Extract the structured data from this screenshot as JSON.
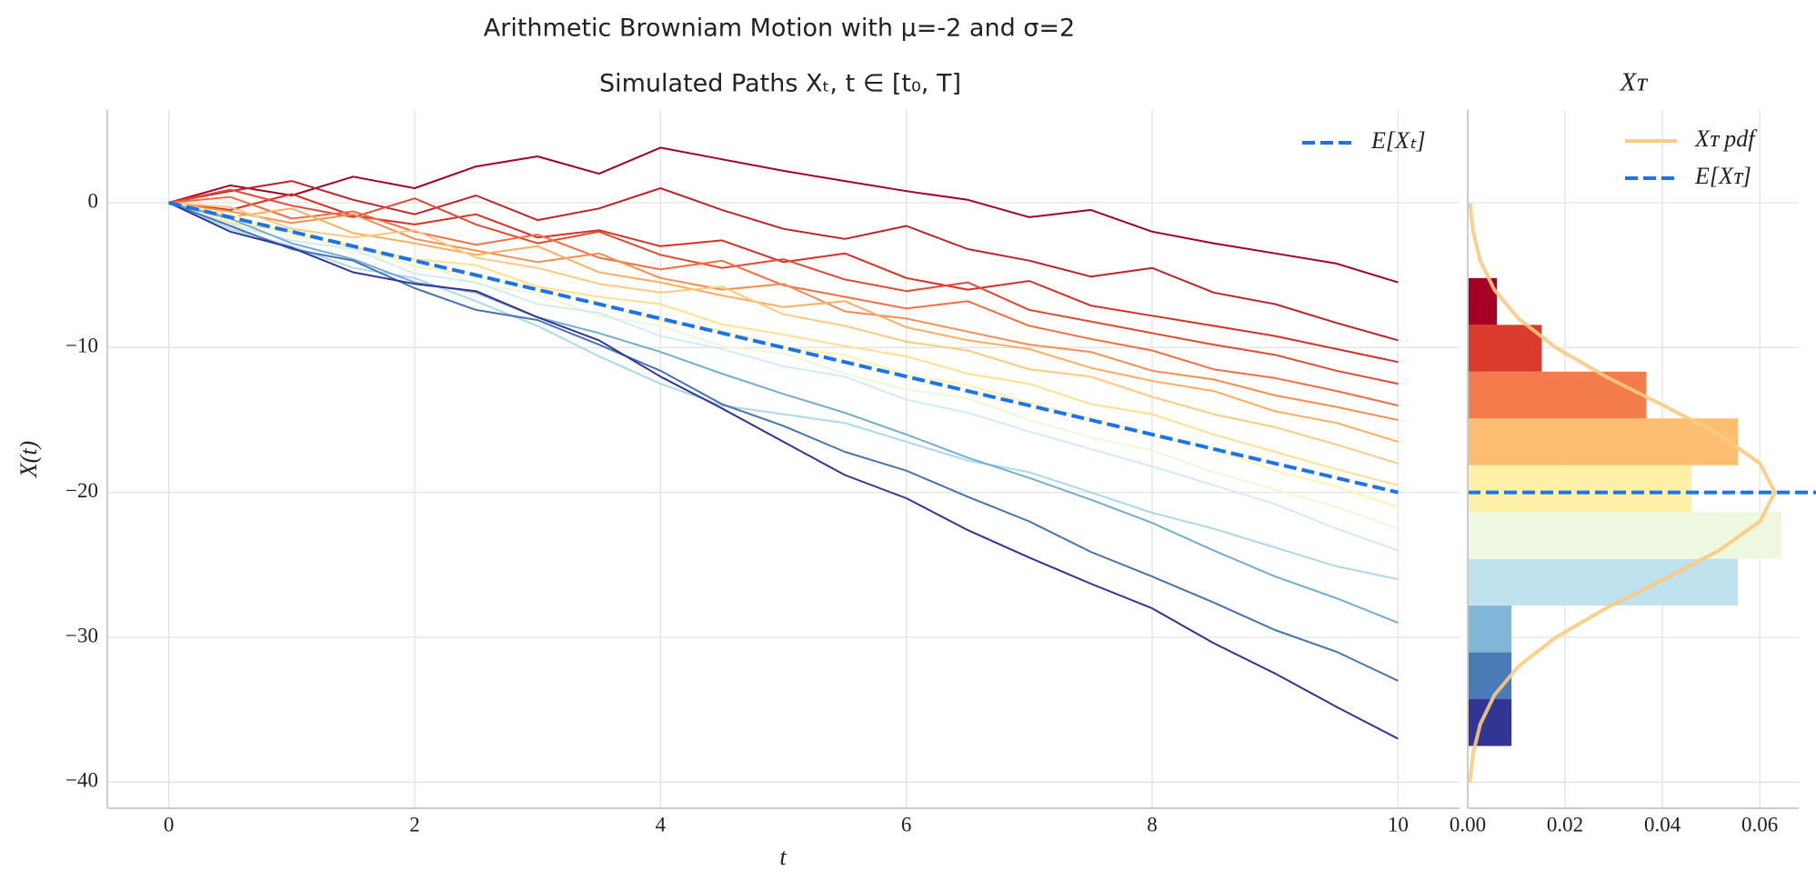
{
  "title": "Arithmetic Browniam Motion with μ=-2 and σ=2",
  "chart_data": [
    {
      "type": "line",
      "title": "Simulated Paths Xₜ, t ∈ [t₀, T]",
      "xlabel": "t",
      "ylabel": "X(t)",
      "x": [
        0,
        0.5,
        1,
        1.5,
        2,
        2.5,
        3,
        3.5,
        4,
        4.5,
        5,
        5.5,
        6,
        6.5,
        7,
        7.5,
        8,
        8.5,
        9,
        9.5,
        10
      ],
      "series": [
        {
          "color": "#a50026",
          "values": [
            0,
            1.2,
            0.5,
            1.8,
            1.0,
            2.5,
            3.2,
            2.0,
            3.8,
            3.0,
            2.2,
            1.5,
            0.8,
            0.2,
            -1.0,
            -0.5,
            -2.0,
            -2.8,
            -3.5,
            -4.2,
            -5.5
          ]
        },
        {
          "color": "#c1232b",
          "values": [
            0,
            0.8,
            1.5,
            0.2,
            -0.8,
            0.5,
            -1.2,
            -0.4,
            1.0,
            -0.5,
            -1.8,
            -2.5,
            -1.6,
            -3.2,
            -4.0,
            -5.1,
            -4.5,
            -6.2,
            -7.0,
            -8.3,
            -9.5
          ]
        },
        {
          "color": "#d73027",
          "values": [
            0,
            -0.5,
            0.6,
            -0.9,
            -1.5,
            -0.8,
            -2.4,
            -1.9,
            -3.0,
            -2.6,
            -4.1,
            -3.5,
            -5.2,
            -6.0,
            -5.4,
            -7.1,
            -7.8,
            -8.5,
            -9.2,
            -10.1,
            -11.0
          ]
        },
        {
          "color": "#e34a33",
          "values": [
            0,
            0.9,
            -0.2,
            -1.0,
            0.3,
            -1.5,
            -2.8,
            -2.0,
            -3.6,
            -4.5,
            -3.9,
            -5.3,
            -6.1,
            -5.5,
            -7.4,
            -8.2,
            -9.0,
            -9.8,
            -10.5,
            -11.6,
            -12.5
          ]
        },
        {
          "color": "#f46d43",
          "values": [
            0,
            0.4,
            -1.1,
            -0.6,
            -2.0,
            -2.9,
            -2.2,
            -3.8,
            -4.6,
            -4.0,
            -5.7,
            -6.5,
            -7.3,
            -6.8,
            -8.5,
            -9.4,
            -10.2,
            -11.5,
            -12.1,
            -13.0,
            -14.0
          ]
        },
        {
          "color": "#f88d52",
          "values": [
            0,
            -0.6,
            -1.4,
            -0.8,
            -2.5,
            -3.3,
            -4.1,
            -3.5,
            -5.2,
            -6.0,
            -5.6,
            -7.5,
            -8.0,
            -8.9,
            -9.8,
            -10.3,
            -11.6,
            -12.2,
            -13.3,
            -14.1,
            -15.0
          ]
        },
        {
          "color": "#fdae61",
          "values": [
            0,
            -1.0,
            -0.4,
            -2.1,
            -2.8,
            -3.6,
            -3.0,
            -4.8,
            -5.5,
            -6.4,
            -7.2,
            -6.8,
            -8.6,
            -9.5,
            -10.1,
            -11.4,
            -12.3,
            -13.0,
            -14.4,
            -15.2,
            -16.5
          ]
        },
        {
          "color": "#fec980",
          "values": [
            0,
            -0.3,
            -1.8,
            -2.4,
            -1.9,
            -3.8,
            -4.5,
            -5.6,
            -6.2,
            -5.8,
            -7.7,
            -8.5,
            -9.6,
            -10.2,
            -11.5,
            -12.0,
            -13.4,
            -14.6,
            -15.5,
            -16.7,
            -18.0
          ]
        },
        {
          "color": "#fee090",
          "values": [
            0,
            -1.4,
            -2.0,
            -3.1,
            -3.9,
            -4.3,
            -5.8,
            -6.5,
            -7.0,
            -8.4,
            -9.1,
            -9.9,
            -10.6,
            -11.8,
            -12.5,
            -13.9,
            -14.6,
            -16.0,
            -17.2,
            -18.4,
            -19.5
          ]
        },
        {
          "color": "#fff3b0",
          "values": [
            0,
            -0.8,
            -2.3,
            -2.9,
            -4.4,
            -5.0,
            -6.1,
            -6.9,
            -8.2,
            -8.8,
            -10.0,
            -10.5,
            -11.9,
            -12.6,
            -13.8,
            -14.9,
            -16.1,
            -17.0,
            -18.5,
            -19.6,
            -21.0
          ]
        },
        {
          "color": "#eef7d8",
          "values": [
            0,
            -1.2,
            -1.9,
            -3.5,
            -4.0,
            -5.6,
            -6.3,
            -7.8,
            -8.5,
            -9.9,
            -10.4,
            -11.8,
            -12.9,
            -13.5,
            -15.0,
            -16.2,
            -17.1,
            -18.6,
            -19.8,
            -21.0,
            -22.5
          ]
        },
        {
          "color": "#d1ecf2",
          "values": [
            0,
            -1.5,
            -2.6,
            -3.2,
            -4.9,
            -5.5,
            -7.0,
            -7.6,
            -9.2,
            -10.1,
            -11.3,
            -12.0,
            -13.6,
            -14.5,
            -15.8,
            -17.0,
            -18.2,
            -19.5,
            -20.8,
            -22.5,
            -24.0
          ]
        },
        {
          "color": "#abd9e9",
          "values": [
            0,
            -1.8,
            -3.0,
            -4.5,
            -5.2,
            -6.8,
            -8.5,
            -10.6,
            -12.5,
            -14.0,
            -14.6,
            -15.2,
            -16.5,
            -17.8,
            -18.6,
            -20.0,
            -21.4,
            -22.5,
            -23.8,
            -25.1,
            -26.0
          ]
        },
        {
          "color": "#74add1",
          "values": [
            0,
            -1.1,
            -2.8,
            -3.9,
            -5.5,
            -6.2,
            -7.9,
            -9.0,
            -10.3,
            -11.8,
            -13.2,
            -14.5,
            -16.0,
            -17.6,
            -19.0,
            -20.5,
            -22.1,
            -24.0,
            -25.8,
            -27.3,
            -29.0
          ]
        },
        {
          "color": "#4575b4",
          "values": [
            0,
            -1.6,
            -3.2,
            -4.0,
            -5.9,
            -7.4,
            -8.1,
            -9.8,
            -11.6,
            -13.9,
            -15.4,
            -17.2,
            -18.5,
            -20.3,
            -22.0,
            -24.1,
            -25.8,
            -27.6,
            -29.5,
            -31.0,
            -33.0
          ]
        },
        {
          "color": "#313695",
          "values": [
            0,
            -2.0,
            -3.1,
            -4.8,
            -5.6,
            -6.1,
            -7.9,
            -9.5,
            -12.0,
            -14.2,
            -16.5,
            -18.8,
            -20.4,
            -22.6,
            -24.5,
            -26.3,
            -28.0,
            -30.4,
            -32.5,
            -34.8,
            -37.0
          ]
        },
        {
          "name": "E[Xₜ]",
          "color": "#1a73e8",
          "dashed": true,
          "x": [
            0,
            10
          ],
          "values": [
            0,
            -20
          ]
        }
      ],
      "xlim": [
        -0.5,
        10.5
      ],
      "ylim": [
        -41.8,
        6.4
      ],
      "xticks": [
        0,
        2,
        4,
        6,
        8,
        10
      ],
      "yticks": [
        0,
        {
          "value": -10,
          "label": "−10"
        },
        {
          "value": -20,
          "label": "−20"
        },
        {
          "value": -30,
          "label": "−30"
        },
        {
          "value": -40,
          "label": "−40"
        }
      ],
      "grid": true,
      "legend": "upper right"
    },
    {
      "type": "histogram",
      "orientation": "horizontal",
      "title": "Xᴛ",
      "bins": [
        -37.5,
        -34.27,
        -31.04,
        -27.81,
        -24.58,
        -21.35,
        -18.12,
        -14.89,
        -11.66,
        -8.43,
        -5.2
      ],
      "values": [
        0.009,
        0.009,
        0.009,
        0.0555,
        0.0645,
        0.046,
        0.0555,
        0.0367,
        0.0152,
        0.006
      ],
      "colors": [
        "#313695",
        "#4a7bb7",
        "#80b6d6",
        "#bfe2ee",
        "#eef8e0",
        "#fef0a6",
        "#fdbe72",
        "#f47b4b",
        "#db3b2c",
        "#a50026"
      ],
      "pdf": {
        "name": "Xᴛ pdf",
        "color": "#fdca7e",
        "y": [
          -40,
          -38,
          -36,
          -34,
          -32,
          -30,
          -28,
          -26,
          -24,
          -22,
          -20,
          -18,
          -16,
          -14,
          -12,
          -10,
          -8,
          -6,
          -4,
          -2,
          0
        ],
        "values": [
          0.000425,
          0.0011,
          0.00257,
          0.00545,
          0.01043,
          0.01808,
          0.02835,
          0.04023,
          0.05166,
          0.06002,
          0.0631,
          0.06002,
          0.05166,
          0.04023,
          0.02835,
          0.01808,
          0.01043,
          0.00545,
          0.00257,
          0.0011,
          0.000425
        ]
      },
      "mean": {
        "name": "E[Xᴛ]",
        "color": "#1a73e8",
        "value": -20
      },
      "xlim": [
        0,
        0.068
      ],
      "xticks": [
        {
          "value": 0,
          "label": "0.00"
        },
        {
          "value": 0.02,
          "label": "0.02"
        },
        {
          "value": 0.04,
          "label": "0.04"
        },
        {
          "value": 0.06,
          "label": "0.06"
        }
      ],
      "grid": true,
      "legend": "upper right"
    }
  ]
}
